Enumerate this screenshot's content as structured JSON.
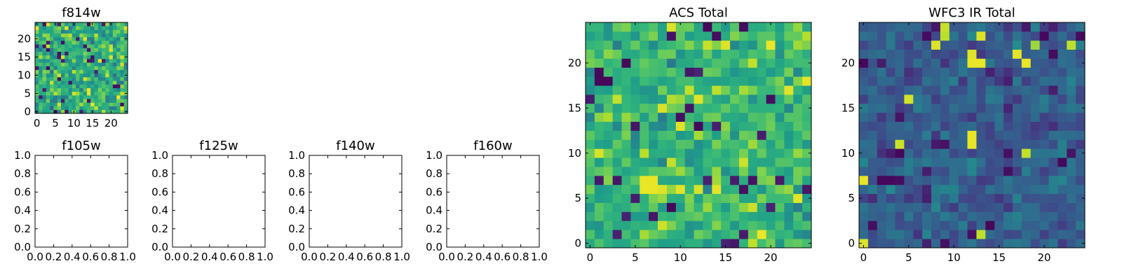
{
  "chart_data": [
    {
      "type": "heatmap",
      "key": "f814w",
      "title": "f814w",
      "grid_size": 25,
      "xlim": [
        -0.5,
        24.5
      ],
      "ylim": [
        -0.5,
        24.5
      ],
      "xticks": [
        0,
        5,
        10,
        15,
        20
      ],
      "yticks": [
        0,
        5,
        10,
        15,
        20
      ],
      "xtick_labels": [
        "0",
        "5",
        "10",
        "15",
        "20"
      ],
      "ytick_labels": [
        "0",
        "5",
        "10",
        "15",
        "20"
      ],
      "colormap": "viridis",
      "values_generated": true,
      "seed": 11,
      "mean": 0.62,
      "spread": 0.14,
      "outliers_low": 0.05,
      "outliers_high": 0.03,
      "hotspots": []
    },
    {
      "type": "empty",
      "key": "f105w",
      "title": "f105w",
      "xlim": [
        0,
        1
      ],
      "ylim": [
        0,
        1
      ],
      "xticks": [
        0,
        0.2,
        0.4,
        0.6,
        0.8,
        1.0
      ],
      "yticks": [
        0,
        0.2,
        0.4,
        0.6,
        0.8,
        1.0
      ],
      "xtick_labels": [
        "0.0",
        "0.2",
        "0.4",
        "0.6",
        "0.8",
        "1.0"
      ],
      "ytick_labels": [
        "0.0",
        "0.2",
        "0.4",
        "0.6",
        "0.8",
        "1.0"
      ]
    },
    {
      "type": "empty",
      "key": "f125w",
      "title": "f125w",
      "xlim": [
        0,
        1
      ],
      "ylim": [
        0,
        1
      ],
      "xticks": [
        0,
        0.2,
        0.4,
        0.6,
        0.8,
        1.0
      ],
      "yticks": [
        0,
        0.2,
        0.4,
        0.6,
        0.8,
        1.0
      ],
      "xtick_labels": [
        "0.0",
        "0.2",
        "0.4",
        "0.6",
        "0.8",
        "1.0"
      ],
      "ytick_labels": [
        "0.0",
        "0.2",
        "0.4",
        "0.6",
        "0.8",
        "1.0"
      ]
    },
    {
      "type": "empty",
      "key": "f140w",
      "title": "f140w",
      "xlim": [
        0,
        1
      ],
      "ylim": [
        0,
        1
      ],
      "xticks": [
        0,
        0.2,
        0.4,
        0.6,
        0.8,
        1.0
      ],
      "yticks": [
        0,
        0.2,
        0.4,
        0.6,
        0.8,
        1.0
      ],
      "xtick_labels": [
        "0.0",
        "0.2",
        "0.4",
        "0.6",
        "0.8",
        "1.0"
      ],
      "ytick_labels": [
        "0.0",
        "0.2",
        "0.4",
        "0.6",
        "0.8",
        "1.0"
      ]
    },
    {
      "type": "empty",
      "key": "f160w",
      "title": "f160w",
      "xlim": [
        0,
        1
      ],
      "ylim": [
        0,
        1
      ],
      "xticks": [
        0,
        0.2,
        0.4,
        0.6,
        0.8,
        1.0
      ],
      "yticks": [
        0,
        0.2,
        0.4,
        0.6,
        0.8,
        1.0
      ],
      "xtick_labels": [
        "0.0",
        "0.2",
        "0.4",
        "0.6",
        "0.8",
        "1.0"
      ],
      "ytick_labels": [
        "0.0",
        "0.2",
        "0.4",
        "0.6",
        "0.8",
        "1.0"
      ]
    },
    {
      "type": "heatmap",
      "key": "acs-total",
      "title": "ACS Total",
      "grid_size": 25,
      "xlim": [
        -0.5,
        24.5
      ],
      "ylim": [
        -0.5,
        24.5
      ],
      "xticks": [
        0,
        5,
        10,
        15,
        20
      ],
      "yticks": [
        0,
        5,
        10,
        15,
        20
      ],
      "xtick_labels": [
        "0",
        "5",
        "10",
        "15",
        "20"
      ],
      "ytick_labels": [
        "0",
        "5",
        "10",
        "15",
        "20"
      ],
      "colormap": "viridis",
      "values_generated": true,
      "seed": 23,
      "mean": 0.66,
      "spread": 0.12,
      "outliers_low": 0.03,
      "outliers_high": 0.04,
      "hotspots": [
        [
          6,
          7,
          0.97
        ],
        [
          7,
          7,
          0.97
        ],
        [
          6,
          6,
          0.97
        ],
        [
          7,
          6,
          0.97
        ],
        [
          8,
          6,
          0.95
        ],
        [
          1,
          19,
          0.02
        ],
        [
          1,
          18,
          0.02
        ],
        [
          2,
          18,
          0.02
        ],
        [
          9,
          4,
          0.02
        ],
        [
          15,
          22,
          0.95
        ],
        [
          20,
          22,
          0.97
        ]
      ]
    },
    {
      "type": "heatmap",
      "key": "wfc3-ir-total",
      "title": "WFC3 IR Total",
      "grid_size": 25,
      "xlim": [
        -0.5,
        24.5
      ],
      "ylim": [
        -0.5,
        24.5
      ],
      "xticks": [
        0,
        5,
        10,
        15,
        20
      ],
      "yticks": [
        0,
        5,
        10,
        15,
        20
      ],
      "xtick_labels": [
        "0",
        "5",
        "10",
        "15",
        "20"
      ],
      "ytick_labels": [
        "0",
        "5",
        "10",
        "15",
        "20"
      ],
      "colormap": "viridis",
      "values_generated": true,
      "seed": 37,
      "mean": 0.3,
      "spread": 0.09,
      "outliers_low": 0.04,
      "outliers_high": 0.02,
      "hotspots": [
        [
          12,
          20,
          0.97
        ],
        [
          13,
          20,
          0.97
        ],
        [
          12,
          21,
          0.95
        ],
        [
          12,
          12,
          0.97
        ],
        [
          12,
          11,
          0.97
        ],
        [
          13,
          23,
          0.95
        ],
        [
          8,
          22,
          0.95
        ],
        [
          9,
          23,
          0.9
        ],
        [
          19,
          22,
          0.85
        ],
        [
          0,
          7,
          0.97
        ],
        [
          0,
          0,
          0.95
        ],
        [
          2,
          7,
          0.02
        ],
        [
          3,
          7,
          0.02
        ],
        [
          0,
          20,
          0.02
        ],
        [
          14,
          2,
          0.02
        ],
        [
          20,
          23,
          0.02
        ]
      ]
    }
  ]
}
